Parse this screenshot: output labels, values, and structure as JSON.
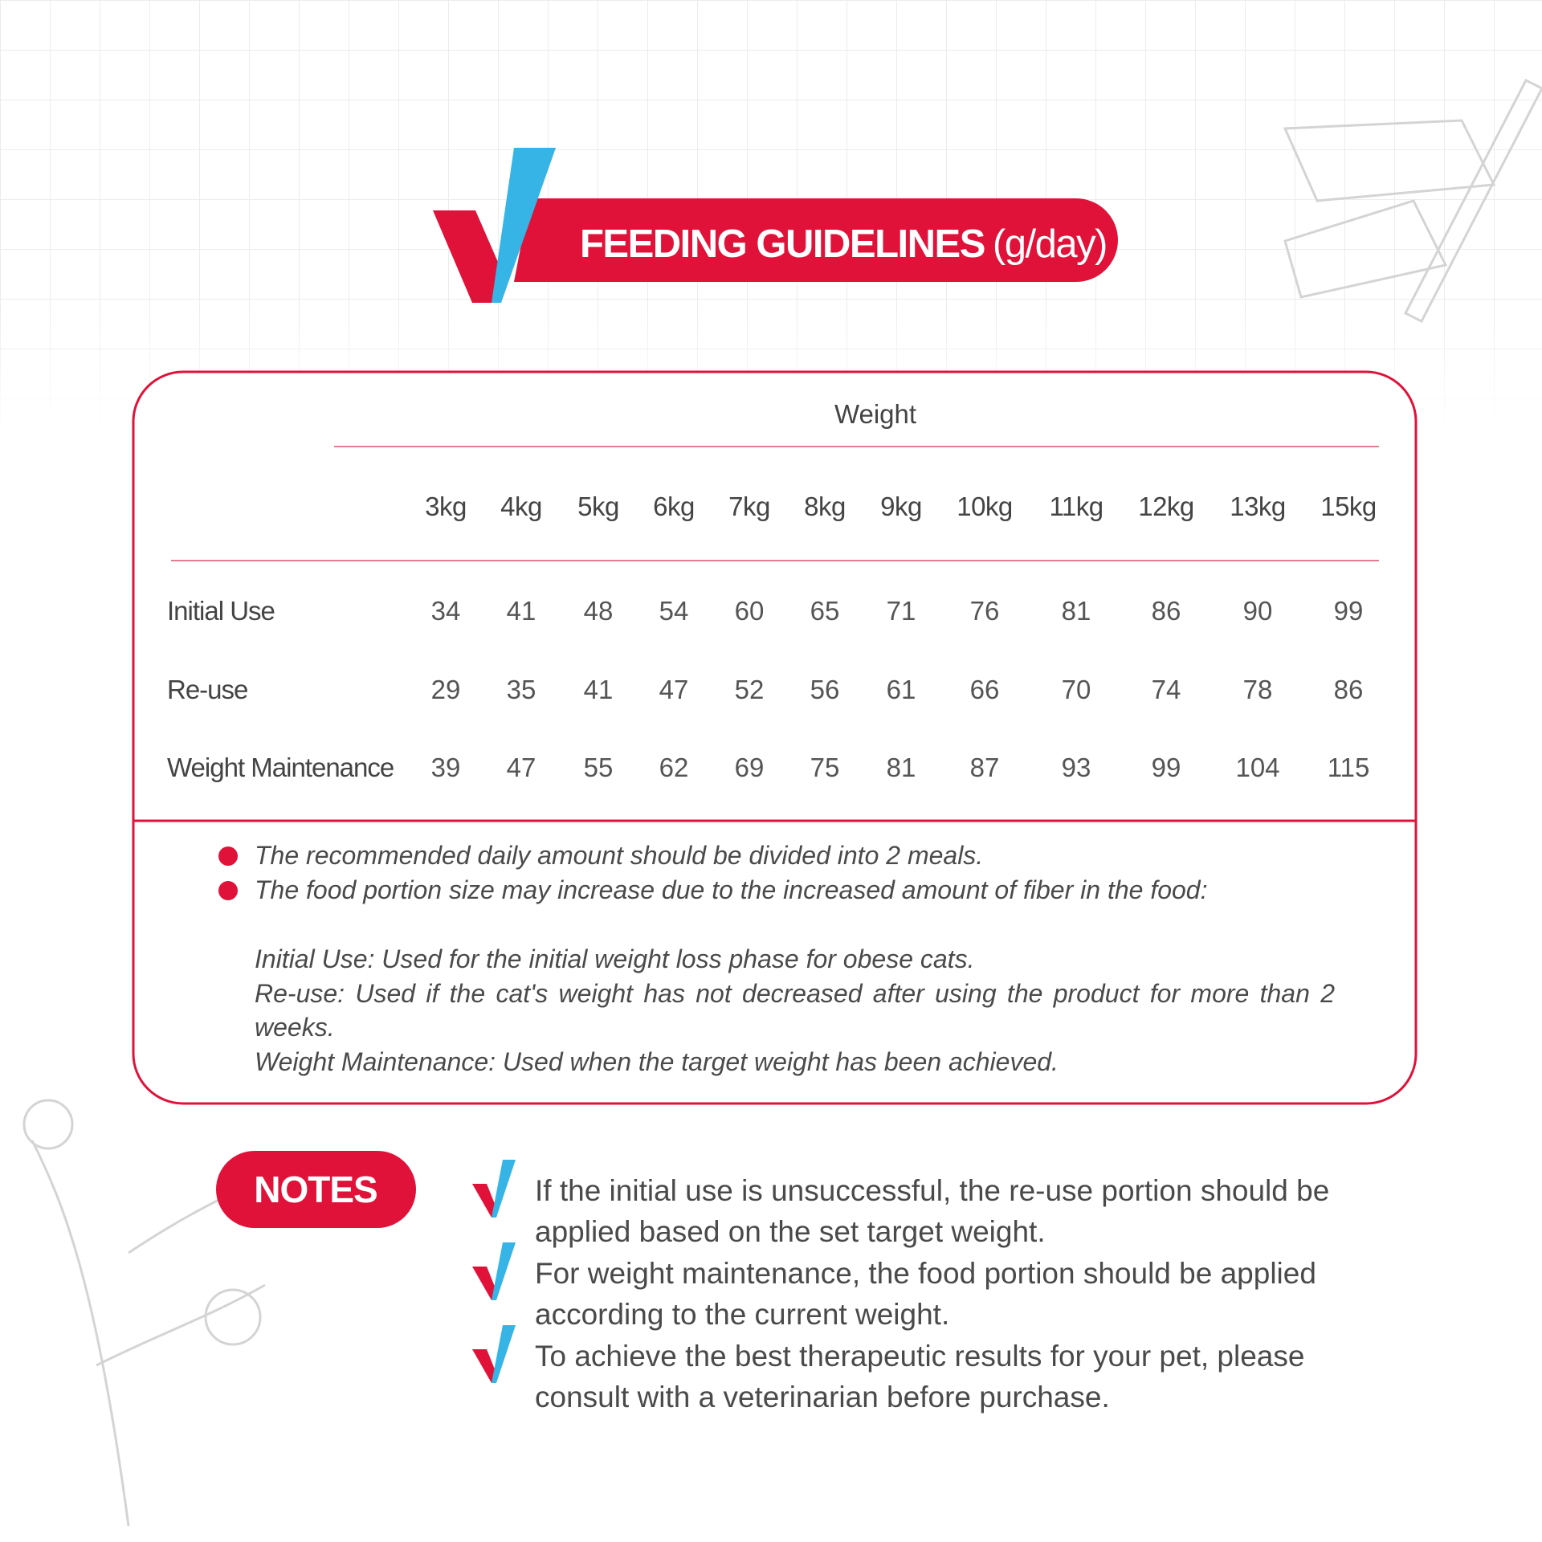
{
  "header": {
    "title": "FEEDING GUIDELINES",
    "unit": "(g/day)"
  },
  "table": {
    "group_header": "Weight",
    "columns": [
      "3kg",
      "4kg",
      "5kg",
      "6kg",
      "7kg",
      "8kg",
      "9kg",
      "10kg",
      "11kg",
      "12kg",
      "13kg",
      "15kg"
    ],
    "rows": [
      {
        "label": "Initial Use",
        "values": [
          34,
          41,
          48,
          54,
          60,
          65,
          71,
          76,
          81,
          86,
          90,
          99
        ]
      },
      {
        "label": "Re-use",
        "values": [
          29,
          35,
          41,
          47,
          52,
          56,
          61,
          66,
          70,
          74,
          78,
          86
        ]
      },
      {
        "label": "Weight Maintenance",
        "values": [
          39,
          47,
          55,
          62,
          69,
          75,
          81,
          87,
          93,
          99,
          104,
          115
        ]
      }
    ]
  },
  "bullets": [
    "The recommended daily amount should be divided into 2 meals.",
    "The food portion size may increase due to the increased amount of fiber in the food:"
  ],
  "definitions": [
    "Initial Use: Used for the initial weight loss phase for obese cats.",
    "Re-use: Used if the cat's weight has not decreased after using the product for more than 2 weeks.",
    "Weight Maintenance: Used when the target weight has been achieved."
  ],
  "notes": {
    "title": "NOTES",
    "items": [
      "If the initial use is unsuccessful, the re-use portion should be applied based on the set target weight.",
      "For weight maintenance, the food portion should be applied according to the current weight.",
      "To achieve the best therapeutic results for your pet, please consult with a veterinarian before purchase."
    ]
  }
}
